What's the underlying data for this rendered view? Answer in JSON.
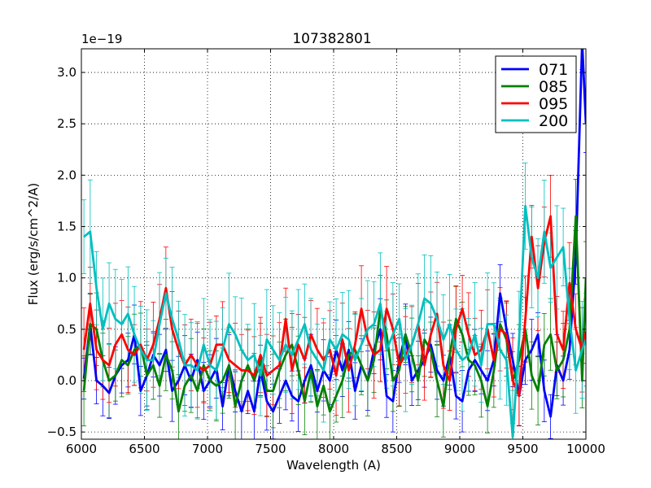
{
  "chart_data": {
    "type": "line",
    "title": "107382801",
    "xlabel": "Wavelength (A)",
    "ylabel": "Flux (erg/s/cm^2/A)",
    "offset_text": "1e−19",
    "xlim": [
      6000,
      10000
    ],
    "ylim": [
      -0.57,
      3.23
    ],
    "xticks": [
      6000,
      6500,
      7000,
      7500,
      8000,
      8500,
      9000,
      9500,
      10000
    ],
    "yticks": [
      -0.5,
      0.0,
      0.5,
      1.0,
      1.5,
      2.0,
      2.5,
      3.0
    ],
    "xtick_labels": [
      "6000",
      "6500",
      "7000",
      "7500",
      "8000",
      "8500",
      "9000",
      "9500",
      "10000"
    ],
    "ytick_labels": [
      "−0.5",
      "0.0",
      "0.5",
      "1.0",
      "1.5",
      "2.0",
      "2.5",
      "3.0"
    ],
    "grid": true,
    "legend_position": "top-right",
    "x": [
      6020,
      6070,
      6120,
      6170,
      6220,
      6270,
      6320,
      6370,
      6420,
      6470,
      6520,
      6570,
      6620,
      6670,
      6720,
      6770,
      6820,
      6870,
      6920,
      6970,
      7020,
      7070,
      7120,
      7170,
      7220,
      7270,
      7320,
      7370,
      7420,
      7470,
      7520,
      7570,
      7620,
      7670,
      7720,
      7770,
      7820,
      7870,
      7920,
      7970,
      8020,
      8070,
      8120,
      8170,
      8220,
      8270,
      8320,
      8370,
      8420,
      8470,
      8520,
      8570,
      8620,
      8670,
      8720,
      8770,
      8820,
      8870,
      8920,
      8970,
      9020,
      9070,
      9120,
      9170,
      9220,
      9270,
      9320,
      9370,
      9420,
      9470,
      9520,
      9570,
      9620,
      9670,
      9720,
      9770,
      9820,
      9870,
      9920,
      9970,
      10000
    ],
    "series": [
      {
        "name": "071",
        "color": "#0000ff",
        "err": 0.25,
        "values": [
          0.02,
          0.55,
          0.0,
          -0.05,
          -0.12,
          0.05,
          0.15,
          0.2,
          0.45,
          -0.1,
          0.05,
          0.25,
          0.15,
          0.3,
          -0.1,
          0.0,
          0.15,
          0.0,
          0.2,
          -0.1,
          0.0,
          0.12,
          -0.25,
          0.15,
          -0.1,
          -0.3,
          -0.1,
          -0.3,
          0.1,
          -0.2,
          -0.3,
          -0.15,
          0.0,
          -0.15,
          -0.2,
          0.0,
          0.15,
          -0.1,
          0.1,
          0.0,
          0.3,
          0.1,
          0.3,
          -0.1,
          0.15,
          0.0,
          0.3,
          0.5,
          -0.15,
          -0.2,
          0.2,
          0.45,
          0.0,
          0.1,
          0.2,
          0.35,
          0.1,
          0.0,
          0.25,
          -0.15,
          -0.2,
          0.1,
          0.2,
          0.1,
          0.0,
          0.2,
          0.85,
          0.5,
          0.2,
          -0.15,
          0.2,
          0.3,
          0.45,
          -0.1,
          -0.35,
          0.15,
          0.0,
          0.3,
          1.2,
          3.3,
          2.5
        ]
      },
      {
        "name": "085",
        "color": "#008000",
        "err": 0.3,
        "values": [
          -0.1,
          0.55,
          0.5,
          0.2,
          0.0,
          0.05,
          0.2,
          0.15,
          0.3,
          0.35,
          0.05,
          0.15,
          -0.05,
          0.25,
          0.1,
          -0.3,
          -0.05,
          0.05,
          -0.1,
          0.15,
          0.0,
          -0.05,
          0.0,
          0.15,
          -0.25,
          0.0,
          0.15,
          0.0,
          0.2,
          -0.1,
          -0.1,
          0.1,
          0.25,
          0.35,
          0.1,
          -0.2,
          0.1,
          -0.25,
          -0.05,
          -0.3,
          -0.15,
          0.0,
          0.25,
          0.3,
          0.15,
          0.0,
          0.2,
          0.7,
          0.45,
          0.0,
          0.1,
          0.45,
          0.25,
          0.0,
          0.4,
          0.3,
          0.0,
          -0.25,
          0.25,
          0.6,
          0.45,
          0.2,
          0.15,
          0.0,
          -0.25,
          0.1,
          0.55,
          0.4,
          0.0,
          0.2,
          0.5,
          0.05,
          -0.1,
          0.35,
          0.45,
          0.1,
          0.2,
          0.5,
          1.6,
          0.0,
          1.0
        ]
      },
      {
        "name": "095",
        "color": "#ff0000",
        "err": 0.35,
        "values": [
          0.3,
          0.75,
          0.3,
          0.2,
          0.15,
          0.35,
          0.45,
          0.3,
          0.25,
          0.35,
          0.2,
          0.35,
          0.6,
          0.9,
          0.5,
          0.3,
          0.15,
          0.25,
          0.15,
          0.1,
          0.15,
          0.35,
          0.35,
          0.2,
          0.15,
          0.1,
          0.1,
          0.05,
          0.25,
          0.05,
          0.1,
          0.15,
          0.6,
          0.1,
          0.35,
          0.2,
          0.45,
          0.3,
          0.2,
          0.3,
          0.05,
          0.4,
          0.1,
          0.35,
          0.7,
          0.4,
          0.25,
          0.3,
          0.7,
          0.5,
          0.15,
          0.25,
          0.35,
          0.55,
          0.15,
          0.45,
          0.65,
          0.15,
          0.0,
          0.5,
          0.7,
          0.45,
          0.25,
          0.3,
          0.5,
          0.2,
          0.5,
          0.45,
          0.0,
          -0.15,
          0.6,
          1.4,
          0.9,
          1.35,
          1.6,
          0.45,
          0.3,
          0.95,
          0.5,
          0.3,
          0.48
        ]
      },
      {
        "name": "200",
        "color": "#00bfbf",
        "err": 0.42,
        "values": [
          1.4,
          1.45,
          0.9,
          0.5,
          0.75,
          0.6,
          0.55,
          0.65,
          0.45,
          0.3,
          0.2,
          0.2,
          0.55,
          0.85,
          0.6,
          0.4,
          0.15,
          0.15,
          0.1,
          0.35,
          0.15,
          0.1,
          0.3,
          0.55,
          0.45,
          0.3,
          0.2,
          0.25,
          0.05,
          0.4,
          0.3,
          0.2,
          0.35,
          0.25,
          0.4,
          0.55,
          0.3,
          0.2,
          0.1,
          0.4,
          0.3,
          0.45,
          0.4,
          0.2,
          0.35,
          0.5,
          0.55,
          0.75,
          0.3,
          0.45,
          0.6,
          0.2,
          0.35,
          0.55,
          0.8,
          0.75,
          0.6,
          0.4,
          0.55,
          0.3,
          0.2,
          0.25,
          0.45,
          0.15,
          0.55,
          0.55,
          0.3,
          0.2,
          -0.55,
          0.4,
          1.7,
          1.2,
          1.0,
          1.45,
          1.1,
          1.2,
          1.3,
          0.6,
          0.1,
          0.3,
          0.4
        ]
      }
    ]
  }
}
